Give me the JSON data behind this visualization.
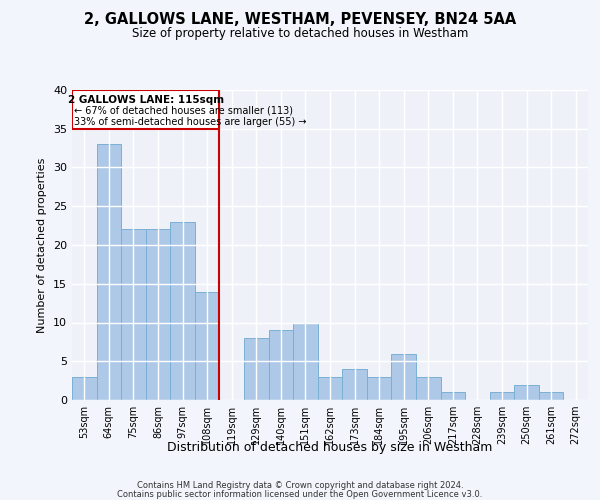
{
  "title": "2, GALLOWS LANE, WESTHAM, PEVENSEY, BN24 5AA",
  "subtitle": "Size of property relative to detached houses in Westham",
  "xlabel": "Distribution of detached houses by size in Westham",
  "ylabel": "Number of detached properties",
  "bar_color": "#aec9e8",
  "bar_edge_color": "#7aafd4",
  "background_color": "#eef2f8",
  "annotation_box_color": "#cc0000",
  "vline_color": "#cc0000",
  "categories": [
    "53sqm",
    "64sqm",
    "75sqm",
    "86sqm",
    "97sqm",
    "108sqm",
    "119sqm",
    "129sqm",
    "140sqm",
    "151sqm",
    "162sqm",
    "173sqm",
    "184sqm",
    "195sqm",
    "206sqm",
    "217sqm",
    "228sqm",
    "239sqm",
    "250sqm",
    "261sqm",
    "272sqm"
  ],
  "values": [
    3,
    33,
    22,
    22,
    23,
    14,
    0,
    8,
    9,
    10,
    3,
    4,
    3,
    6,
    3,
    1,
    0,
    1,
    2,
    1,
    0
  ],
  "vline_position": 6,
  "annotation_title": "2 GALLOWS LANE: 115sqm",
  "annotation_line1": "← 67% of detached houses are smaller (113)",
  "annotation_line2": "33% of semi-detached houses are larger (55) →",
  "ylim": [
    0,
    40
  ],
  "yticks": [
    0,
    5,
    10,
    15,
    20,
    25,
    30,
    35,
    40
  ],
  "footer1": "Contains HM Land Registry data © Crown copyright and database right 2024.",
  "footer2": "Contains public sector information licensed under the Open Government Licence v3.0."
}
